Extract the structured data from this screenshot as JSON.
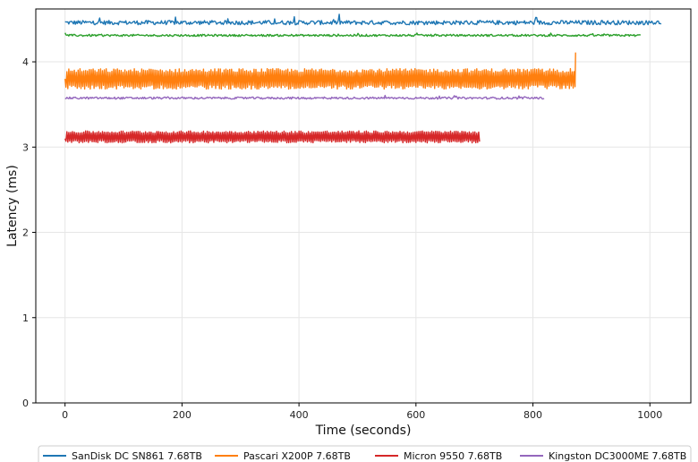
{
  "chart_data": {
    "type": "line",
    "title": "",
    "xlabel": "Time (seconds)",
    "ylabel": "Latency (ms)",
    "xlim": [
      -50,
      1070
    ],
    "ylim": [
      0,
      4.62
    ],
    "x_ticks": [
      0,
      200,
      400,
      600,
      800,
      1000
    ],
    "y_ticks": [
      0,
      1,
      2,
      3,
      4
    ],
    "grid": true,
    "legend_position": "bottom",
    "series": [
      {
        "name": "SanDisk DC SN861 7.68TB",
        "color": "#1f77b4",
        "x_end": 1020,
        "mean": 4.46,
        "noise": 0.025,
        "spike": 0.08,
        "start": 4.47
      },
      {
        "name": "",
        "color": "#2ca02c",
        "x_end": 985,
        "mean": 4.31,
        "noise": 0.012,
        "spike": 0.02,
        "start": 4.34
      },
      {
        "name": "Pascari X200P 7.68TB",
        "color": "#ff7f0e",
        "x_end": 873,
        "mean": 3.8,
        "noise": 0.12,
        "spike": 0.15,
        "start": 3.8,
        "end_spike": 4.11
      },
      {
        "name": "Kingston DC3000ME 7.68TB",
        "color": "#9467bd",
        "x_end": 820,
        "mean": 3.575,
        "noise": 0.012,
        "spike": 0.03,
        "start": 3.57
      },
      {
        "name": "Micron 9550 7.68TB",
        "color": "#d62728",
        "x_end": 710,
        "mean": 3.12,
        "noise": 0.07,
        "spike": 0.08,
        "start": 3.1
      }
    ],
    "legend_order": [
      0,
      2,
      4,
      3
    ]
  }
}
